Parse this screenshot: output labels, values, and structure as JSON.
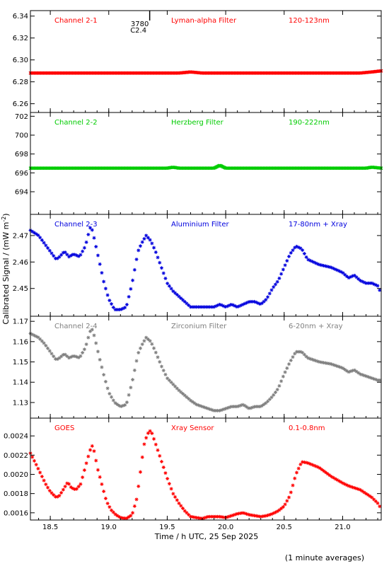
{
  "figure": {
    "ylabel": "Calibrated Signal / (mW m",
    "ylabel_sup": "-2",
    "ylabel_close": ")",
    "xlabel": "Time / h UTC, 25 Sep 2025",
    "footnote": "(1 minute averages)",
    "annotation": {
      "line1": "3780",
      "line2": "C2.4",
      "x": 19.35
    }
  },
  "chart_data": [
    {
      "type": "scatter",
      "channel": "Channel 2-1",
      "filter": "Lyman-alpha Filter",
      "band": "120-123nm",
      "color": "#ff0000",
      "marker": "x-dense",
      "xlim": [
        18.33,
        21.33
      ],
      "ylim": [
        6.252,
        6.345
      ],
      "yticks": [
        6.26,
        6.28,
        6.3,
        6.32,
        6.34
      ],
      "ytick_labels": [
        "6.26",
        "6.28",
        "6.30",
        "6.32",
        "6.34"
      ],
      "grid": false,
      "x": [
        18.33,
        19.5,
        19.6,
        19.7,
        19.8,
        21.15,
        21.25,
        21.33
      ],
      "y": [
        6.288,
        6.288,
        6.288,
        6.289,
        6.288,
        6.288,
        6.289,
        6.29
      ]
    },
    {
      "type": "scatter",
      "channel": "Channel 2-2",
      "filter": "Herzberg Filter",
      "band": "190-222nm",
      "color": "#00cc00",
      "marker": "x-dense",
      "xlim": [
        18.33,
        21.33
      ],
      "ylim": [
        691.6,
        702.4
      ],
      "yticks": [
        694,
        696,
        698,
        700,
        702
      ],
      "ytick_labels": [
        "694",
        "696",
        "698",
        "700",
        "702"
      ],
      "grid": false,
      "x": [
        18.33,
        19.5,
        19.55,
        19.6,
        19.9,
        19.95,
        20.0,
        21.2,
        21.25,
        21.33
      ],
      "y": [
        696.5,
        696.5,
        696.6,
        696.5,
        696.5,
        696.8,
        696.5,
        696.5,
        696.6,
        696.5
      ]
    },
    {
      "type": "scatter",
      "channel": "Channel 2-3",
      "filter": "Aluminium Filter",
      "band": "17-80nm + Xray",
      "color": "#0000dd",
      "marker": "asterisk",
      "xlim": [
        18.33,
        21.33
      ],
      "ylim": [
        2.4395,
        2.478
      ],
      "yticks": [
        2.45,
        2.46,
        2.47
      ],
      "ytick_labels": [
        "2.45",
        "2.46",
        "2.47"
      ],
      "grid": false,
      "x": [
        18.33,
        18.4,
        18.45,
        18.5,
        18.55,
        18.58,
        18.62,
        18.66,
        18.7,
        18.75,
        18.8,
        18.84,
        18.86,
        18.88,
        18.92,
        18.96,
        19.0,
        19.05,
        19.1,
        19.15,
        19.2,
        19.25,
        19.28,
        19.32,
        19.36,
        19.4,
        19.45,
        19.5,
        19.55,
        19.6,
        19.7,
        19.75,
        19.8,
        19.85,
        19.9,
        19.95,
        20.0,
        20.05,
        20.1,
        20.15,
        20.2,
        20.25,
        20.3,
        20.35,
        20.4,
        20.45,
        20.5,
        20.55,
        20.6,
        20.65,
        20.7,
        20.8,
        20.9,
        21.0,
        21.05,
        21.1,
        21.15,
        21.2,
        21.25,
        21.3,
        21.33
      ],
      "y": [
        2.472,
        2.47,
        2.467,
        2.464,
        2.461,
        2.462,
        2.464,
        2.462,
        2.463,
        2.462,
        2.466,
        2.473,
        2.472,
        2.468,
        2.46,
        2.452,
        2.446,
        2.442,
        2.442,
        2.443,
        2.452,
        2.464,
        2.467,
        2.47,
        2.468,
        2.464,
        2.458,
        2.452,
        2.449,
        2.447,
        2.443,
        2.443,
        2.443,
        2.443,
        2.443,
        2.444,
        2.443,
        2.444,
        2.443,
        2.444,
        2.445,
        2.445,
        2.444,
        2.446,
        2.45,
        2.453,
        2.458,
        2.463,
        2.466,
        2.465,
        2.461,
        2.459,
        2.458,
        2.456,
        2.454,
        2.455,
        2.453,
        2.452,
        2.452,
        2.451,
        2.448
      ]
    },
    {
      "type": "scatter",
      "channel": "Channel 2-4",
      "filter": "Zirconium Filter",
      "band": "6-20nm + Xray",
      "color": "#7f7f7f",
      "marker": "asterisk",
      "xlim": [
        18.33,
        21.33
      ],
      "ylim": [
        1.1223,
        1.1725
      ],
      "yticks": [
        1.13,
        1.14,
        1.15,
        1.16,
        1.17
      ],
      "ytick_labels": [
        "1.13",
        "1.14",
        "1.15",
        "1.16",
        "1.17"
      ],
      "grid": false,
      "x": [
        18.33,
        18.4,
        18.45,
        18.5,
        18.55,
        18.58,
        18.62,
        18.66,
        18.7,
        18.75,
        18.8,
        18.84,
        18.86,
        18.88,
        18.92,
        18.96,
        19.0,
        19.05,
        19.1,
        19.15,
        19.2,
        19.25,
        19.28,
        19.32,
        19.36,
        19.4,
        19.45,
        19.5,
        19.55,
        19.6,
        19.7,
        19.75,
        19.8,
        19.85,
        19.9,
        19.95,
        20.0,
        20.05,
        20.1,
        20.15,
        20.2,
        20.25,
        20.3,
        20.35,
        20.4,
        20.45,
        20.5,
        20.55,
        20.6,
        20.65,
        20.7,
        20.8,
        20.9,
        21.0,
        21.05,
        21.1,
        21.15,
        21.2,
        21.25,
        21.3,
        21.33
      ],
      "y": [
        1.164,
        1.162,
        1.159,
        1.155,
        1.151,
        1.152,
        1.154,
        1.152,
        1.153,
        1.152,
        1.157,
        1.165,
        1.166,
        1.162,
        1.152,
        1.143,
        1.135,
        1.13,
        1.128,
        1.129,
        1.14,
        1.154,
        1.158,
        1.162,
        1.16,
        1.155,
        1.148,
        1.142,
        1.139,
        1.136,
        1.131,
        1.129,
        1.128,
        1.127,
        1.126,
        1.126,
        1.127,
        1.128,
        1.128,
        1.129,
        1.127,
        1.128,
        1.128,
        1.13,
        1.133,
        1.137,
        1.144,
        1.15,
        1.155,
        1.155,
        1.152,
        1.15,
        1.149,
        1.147,
        1.145,
        1.146,
        1.144,
        1.143,
        1.142,
        1.141,
        1.141
      ]
    },
    {
      "type": "scatter",
      "channel": "GOES",
      "filter": "Xray Sensor",
      "band": "0.1-0.8nm",
      "color": "#ff0000",
      "marker": "asterisk",
      "xlim": [
        18.33,
        21.33
      ],
      "ylim": [
        0.001525,
        0.002585
      ],
      "yticks": [
        0.0016,
        0.0018,
        0.002,
        0.0022,
        0.0024
      ],
      "ytick_labels": [
        "0.0016",
        "0.0018",
        "0.0020",
        "0.0022",
        "0.0024"
      ],
      "grid": false,
      "x": [
        18.33,
        18.38,
        18.42,
        18.46,
        18.5,
        18.55,
        18.58,
        18.62,
        18.65,
        18.68,
        18.72,
        18.76,
        18.8,
        18.84,
        18.86,
        18.88,
        18.9,
        18.94,
        18.98,
        19.02,
        19.06,
        19.1,
        19.15,
        19.2,
        19.24,
        19.27,
        19.3,
        19.33,
        19.36,
        19.4,
        19.45,
        19.5,
        19.55,
        19.6,
        19.65,
        19.7,
        19.75,
        19.8,
        19.85,
        19.9,
        19.95,
        20.0,
        20.05,
        20.1,
        20.15,
        20.2,
        20.25,
        20.3,
        20.35,
        20.4,
        20.45,
        20.5,
        20.55,
        20.6,
        20.65,
        20.7,
        20.8,
        20.9,
        21.0,
        21.05,
        21.1,
        21.15,
        21.2,
        21.25,
        21.3,
        21.33
      ],
      "y": [
        0.00222,
        0.0021,
        0.002,
        0.0019,
        0.00182,
        0.00176,
        0.00178,
        0.00186,
        0.00192,
        0.00186,
        0.00184,
        0.0019,
        0.00208,
        0.00225,
        0.0023,
        0.00222,
        0.00208,
        0.0019,
        0.00172,
        0.00163,
        0.00158,
        0.00155,
        0.00154,
        0.00158,
        0.00175,
        0.00202,
        0.0023,
        0.00242,
        0.00246,
        0.00232,
        0.00214,
        0.00196,
        0.0018,
        0.0017,
        0.00162,
        0.00156,
        0.00155,
        0.00154,
        0.00156,
        0.00156,
        0.00156,
        0.00155,
        0.00157,
        0.00159,
        0.0016,
        0.00158,
        0.00157,
        0.00156,
        0.00157,
        0.00159,
        0.00162,
        0.00167,
        0.00178,
        0.002,
        0.00213,
        0.00212,
        0.00207,
        0.00198,
        0.00191,
        0.00188,
        0.00186,
        0.00184,
        0.0018,
        0.00176,
        0.0017,
        0.00164
      ]
    }
  ],
  "xaxis": {
    "ticks": [
      18.5,
      19.0,
      19.5,
      20.0,
      20.5,
      21.0
    ],
    "tick_labels": [
      "18.5",
      "19.0",
      "19.5",
      "20.0",
      "20.5",
      "21.0"
    ]
  }
}
